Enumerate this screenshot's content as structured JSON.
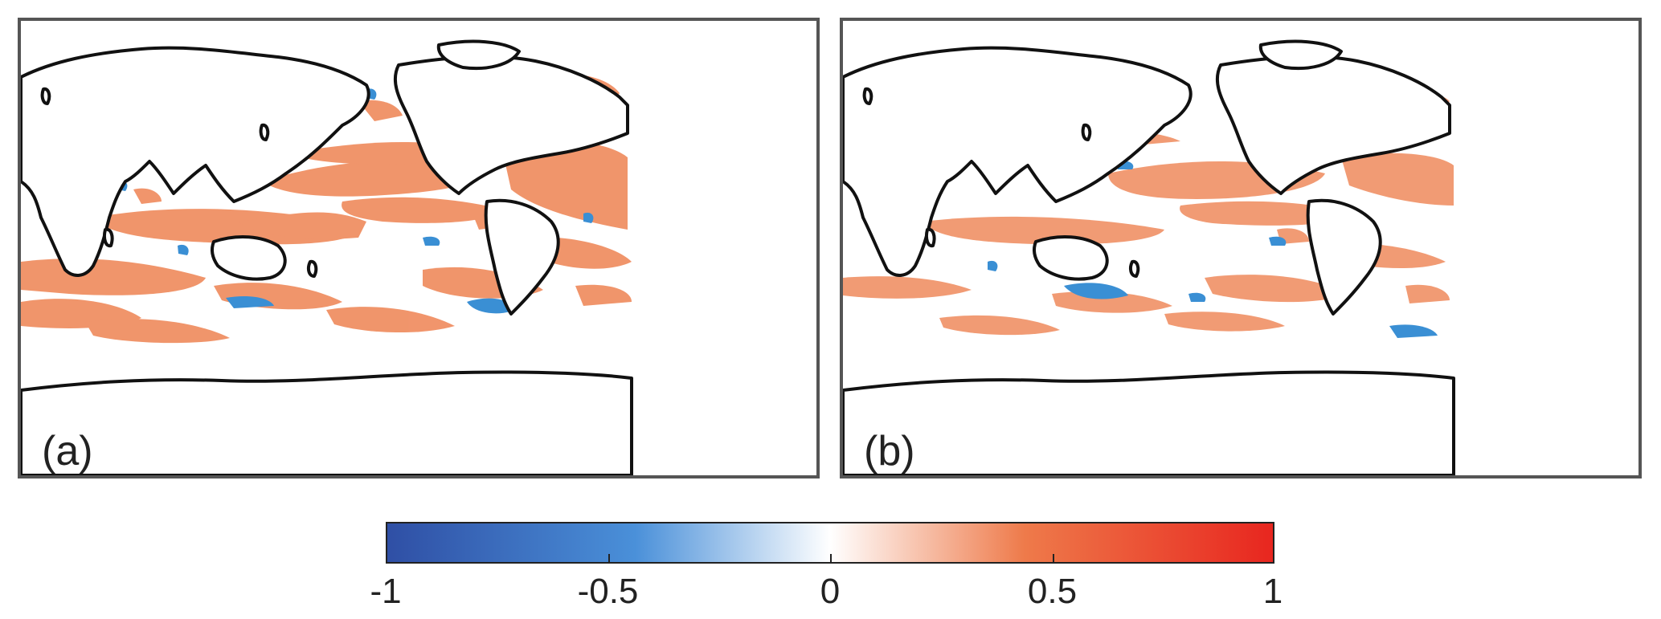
{
  "panels": [
    {
      "id": "a",
      "label": "(a)"
    },
    {
      "id": "b",
      "label": "(b)"
    }
  ],
  "colorbar": {
    "min": -1,
    "max": 1,
    "colors": {
      "negative": "#2f4fa5",
      "mid_negative": "#4a90d9",
      "zero": "#ffffff",
      "mid_positive": "#ee7a4a",
      "positive": "#e8261f"
    },
    "ticks": [
      {
        "value": -1,
        "label": "-1"
      },
      {
        "value": -0.5,
        "label": "-0.5"
      },
      {
        "value": 0,
        "label": "0"
      },
      {
        "value": 0.5,
        "label": "0.5"
      },
      {
        "value": 1,
        "label": "1"
      }
    ]
  },
  "colors": {
    "land": "#ffffff",
    "coastline": "#111111",
    "frame": "#555555",
    "positive_anomaly": "#ef8a5c",
    "negative_anomaly": "#3a8fd4"
  }
}
